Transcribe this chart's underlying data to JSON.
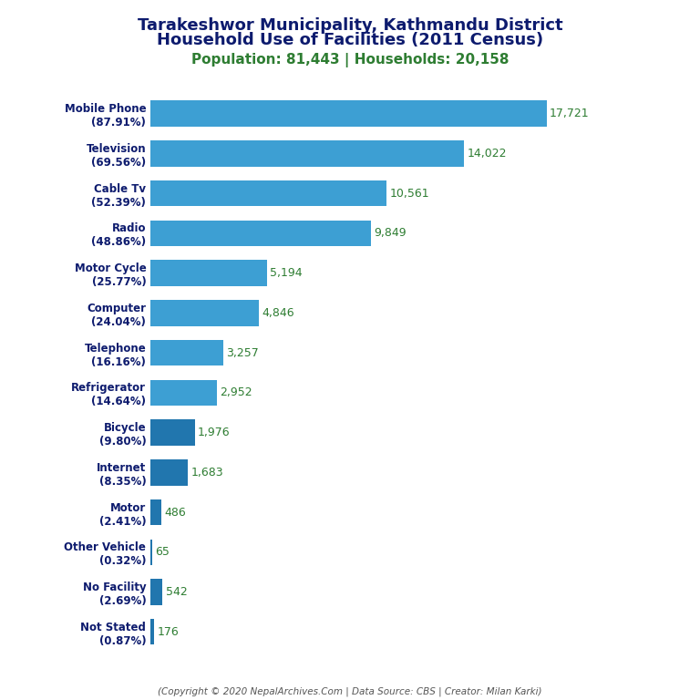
{
  "title_line1": "Tarakeshwor Municipality, Kathmandu District",
  "title_line2": "Household Use of Facilities (2011 Census)",
  "subtitle": "Population: 81,443 | Households: 20,158",
  "footer": "(Copyright © 2020 NepalArchives.Com | Data Source: CBS | Creator: Milan Karki)",
  "categories": [
    "Not Stated\n(0.87%)",
    "No Facility\n(2.69%)",
    "Other Vehicle\n(0.32%)",
    "Motor\n(2.41%)",
    "Internet\n(8.35%)",
    "Bicycle\n(9.80%)",
    "Refrigerator\n(14.64%)",
    "Telephone\n(16.16%)",
    "Computer\n(24.04%)",
    "Motor Cycle\n(25.77%)",
    "Radio\n(48.86%)",
    "Cable Tv\n(52.39%)",
    "Television\n(69.56%)",
    "Mobile Phone\n(87.91%)"
  ],
  "values": [
    176,
    542,
    65,
    486,
    1683,
    1976,
    2952,
    3257,
    4846,
    5194,
    9849,
    10561,
    14022,
    17721
  ],
  "bar_color_small": "#2176ae",
  "bar_color_large": "#3d9fd3",
  "value_color": "#2e7d32",
  "title_color": "#0d1b6e",
  "subtitle_color": "#2e7d32",
  "footer_color": "#555555",
  "background_color": "#ffffff",
  "threshold": 2000
}
